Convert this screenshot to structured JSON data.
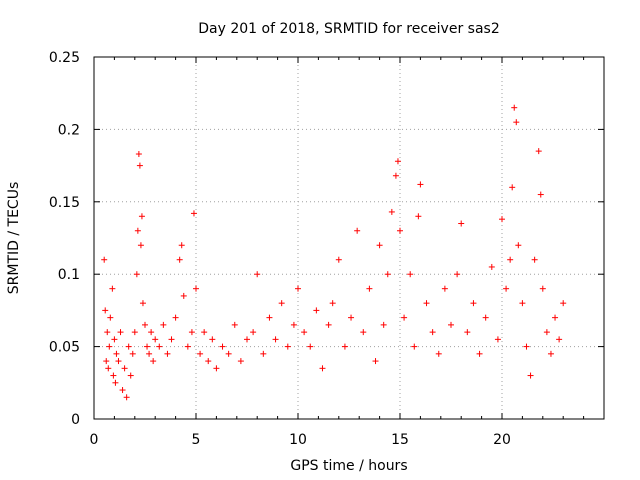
{
  "chart_data": {
    "type": "scatter",
    "title": "Day 201 of 2018, SRMTID for receiver sas2",
    "xlabel": "GPS time / hours",
    "ylabel": "SRMTID / TECUs",
    "xlim": [
      0,
      25
    ],
    "ylim": [
      0,
      0.25
    ],
    "x_ticks": [
      0,
      5,
      10,
      15,
      20
    ],
    "x_tick_labels": [
      "0",
      "5",
      "10",
      "15",
      "20"
    ],
    "y_ticks": [
      0,
      0.05,
      0.1,
      0.15,
      0.2,
      0.25
    ],
    "y_tick_labels": [
      "0",
      "0.05",
      "0.1",
      "0.15",
      "0.2",
      "0.25"
    ],
    "grid": true,
    "marker": "+",
    "series_color": "#ff0000",
    "series": [
      {
        "name": "SRMTID",
        "x": [
          0.5,
          0.55,
          0.6,
          0.65,
          0.7,
          0.75,
          0.8,
          0.9,
          0.95,
          1.0,
          1.05,
          1.1,
          1.2,
          1.3,
          1.4,
          1.5,
          1.6,
          1.7,
          1.8,
          1.9,
          2.0,
          2.1,
          2.15,
          2.2,
          2.25,
          2.3,
          2.35,
          2.4,
          2.5,
          2.6,
          2.7,
          2.8,
          2.9,
          3.0,
          3.2,
          3.4,
          3.6,
          3.8,
          4.0,
          4.2,
          4.3,
          4.4,
          4.6,
          4.8,
          4.9,
          5.0,
          5.2,
          5.4,
          5.6,
          5.8,
          6.0,
          6.3,
          6.6,
          6.9,
          7.2,
          7.5,
          7.8,
          8.0,
          8.3,
          8.6,
          8.9,
          9.2,
          9.5,
          9.8,
          10.0,
          10.3,
          10.6,
          10.9,
          11.2,
          11.5,
          11.7,
          12.0,
          12.3,
          12.6,
          12.9,
          13.2,
          13.5,
          13.8,
          14.0,
          14.2,
          14.4,
          14.6,
          14.8,
          14.9,
          15.0,
          15.2,
          15.5,
          15.7,
          15.9,
          16.0,
          16.3,
          16.6,
          16.9,
          17.2,
          17.5,
          17.8,
          18.0,
          18.3,
          18.6,
          18.9,
          19.2,
          19.5,
          19.8,
          20.0,
          20.2,
          20.4,
          20.5,
          20.6,
          20.7,
          20.8,
          21.0,
          21.2,
          21.4,
          21.6,
          21.8,
          21.9,
          22.0,
          22.2,
          22.4,
          22.6,
          22.8,
          23.0
        ],
        "y": [
          0.11,
          0.075,
          0.04,
          0.06,
          0.035,
          0.05,
          0.07,
          0.09,
          0.03,
          0.055,
          0.025,
          0.045,
          0.04,
          0.06,
          0.02,
          0.035,
          0.015,
          0.05,
          0.03,
          0.045,
          0.06,
          0.1,
          0.13,
          0.183,
          0.175,
          0.12,
          0.14,
          0.08,
          0.065,
          0.05,
          0.045,
          0.06,
          0.04,
          0.055,
          0.05,
          0.065,
          0.045,
          0.055,
          0.07,
          0.11,
          0.12,
          0.085,
          0.05,
          0.06,
          0.142,
          0.09,
          0.045,
          0.06,
          0.04,
          0.055,
          0.035,
          0.05,
          0.045,
          0.065,
          0.04,
          0.055,
          0.06,
          0.1,
          0.045,
          0.07,
          0.055,
          0.08,
          0.05,
          0.065,
          0.09,
          0.06,
          0.05,
          0.075,
          0.035,
          0.065,
          0.08,
          0.11,
          0.05,
          0.07,
          0.13,
          0.06,
          0.09,
          0.04,
          0.12,
          0.065,
          0.1,
          0.143,
          0.168,
          0.178,
          0.13,
          0.07,
          0.1,
          0.05,
          0.14,
          0.162,
          0.08,
          0.06,
          0.045,
          0.09,
          0.065,
          0.1,
          0.135,
          0.06,
          0.08,
          0.045,
          0.07,
          0.105,
          0.055,
          0.138,
          0.09,
          0.11,
          0.16,
          0.215,
          0.205,
          0.12,
          0.08,
          0.05,
          0.03,
          0.11,
          0.185,
          0.155,
          0.09,
          0.06,
          0.045,
          0.07,
          0.055,
          0.08
        ]
      }
    ]
  }
}
